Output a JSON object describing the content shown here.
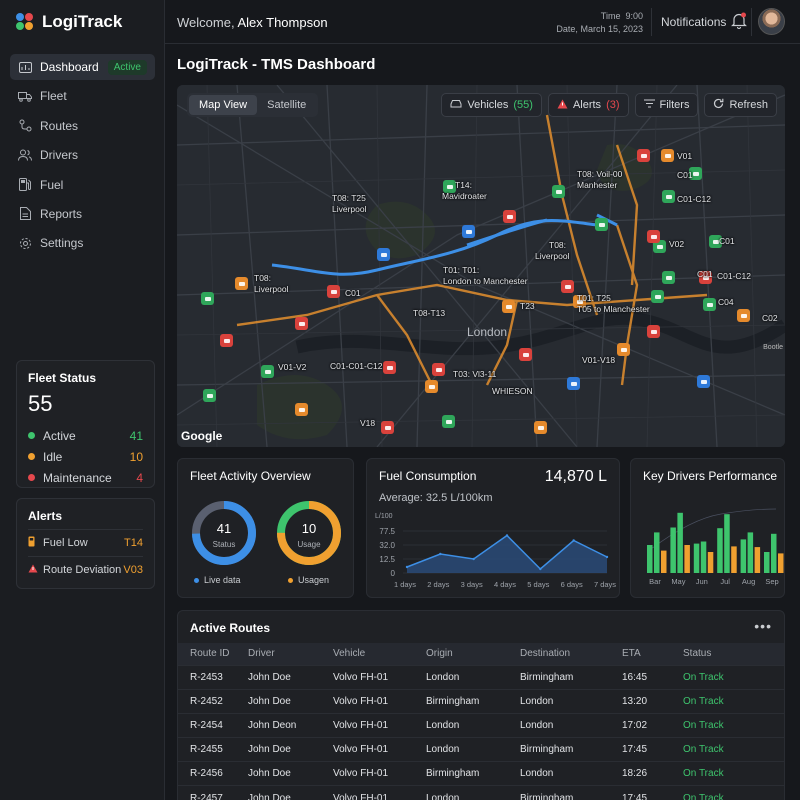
{
  "app": {
    "name": "LogiTrack"
  },
  "sidebar": {
    "items": [
      {
        "label": "Dashboard",
        "icon": "dashboard-icon",
        "badge": "Active"
      },
      {
        "label": "Fleet",
        "icon": "truck-icon"
      },
      {
        "label": "Routes",
        "icon": "routes-icon"
      },
      {
        "label": "Drivers",
        "icon": "users-icon"
      },
      {
        "label": "Fuel",
        "icon": "fuel-icon"
      },
      {
        "label": "Reports",
        "icon": "document-icon"
      },
      {
        "label": "Settings",
        "icon": "gear-icon"
      }
    ],
    "fleet_status": {
      "title": "Fleet Status",
      "total": "55",
      "rows": [
        {
          "label": "Active",
          "value": "41",
          "color": "#3ec46d"
        },
        {
          "label": "Idle",
          "value": "10",
          "color": "#f0a030"
        },
        {
          "label": "Maintenance",
          "value": "4",
          "color": "#e5484d"
        }
      ]
    },
    "alerts": {
      "title": "Alerts",
      "rows": [
        {
          "label": "Fuel Low",
          "code": "T14",
          "icon": "fuel-icon"
        },
        {
          "label": "Route Deviation",
          "code": "V03",
          "icon": "warning-icon"
        }
      ]
    }
  },
  "header": {
    "welcome_prefix": "Welcome,",
    "user_name": "Alex Thompson",
    "time_label": "Time",
    "time_value": "9:00",
    "date_label": "Date,",
    "date_value": "March 15, 2023",
    "notifications_label": "Notifications"
  },
  "page": {
    "title": "LogiTrack - TMS Dashboard"
  },
  "map": {
    "tabs": [
      "Map View",
      "Satellite"
    ],
    "vehicles_label": "Vehicles",
    "vehicles_count": "(55)",
    "alerts_label": "Alerts",
    "alerts_count": "(3)",
    "filters_label": "Filters",
    "refresh_label": "Refresh",
    "city_label": "London",
    "attribution": "Google",
    "corner_text": "Bootle",
    "labels": [
      "T08: T25",
      "Liverpool",
      "T14:",
      "Mavidroater",
      "T08: Voil-00",
      "Manhester",
      "V01",
      "C01",
      "C01-C12",
      "T08:",
      "Liverpool",
      "V02",
      "C01",
      "C01",
      "C01-C12",
      "T08:",
      "Liverpool",
      "C01",
      "T01: T01:",
      "London to Manchester",
      "T23",
      "T01: T25",
      "T05 to Mlanchester",
      "C04",
      "C02",
      "T08-T13",
      "V01-V2",
      "C01-C01-C12",
      "V01-V18",
      "T03: Vl3-11",
      "WHIESON",
      "V18"
    ]
  },
  "activity": {
    "title": "Fleet Activity Overview",
    "donut1": {
      "value": "41",
      "label": "Status",
      "fraction": 0.745,
      "color": "#3d8fe6"
    },
    "donut2": {
      "value": "10",
      "label": "Usage",
      "fraction": 0.75,
      "color": "#f0a030",
      "color2": "#3ec46d"
    },
    "legend1": "Live data",
    "legend2": "Usagen"
  },
  "fuel": {
    "title": "Fuel Consumption",
    "total": "14,870 L",
    "average": "Average: 32.5 L/100km"
  },
  "drivers": {
    "title": "Key Drivers Performance"
  },
  "chart_data": [
    {
      "type": "area",
      "ylabel": "L/100",
      "y_ticks": [
        "77.5",
        "32.0",
        "12.5",
        "0"
      ],
      "categories": [
        "1 days",
        "2 days",
        "3 days",
        "4 days",
        "5 days",
        "6 days",
        "7 days"
      ],
      "values": [
        12,
        38,
        28,
        75,
        8,
        65,
        32
      ],
      "ylim": [
        0,
        100
      ]
    },
    {
      "type": "bar",
      "categories": [
        "Bar",
        "May",
        "Jun",
        "Jul",
        "Aug",
        "Sep"
      ],
      "series": [
        {
          "values": [
            40,
            65,
            42,
            64,
            48,
            30
          ],
          "color": "#3ec46d"
        },
        {
          "values": [
            58,
            86,
            45,
            84,
            58,
            56
          ],
          "color": "#3ec46d"
        },
        {
          "values": [
            32,
            40,
            30,
            38,
            37,
            28
          ],
          "color": "#f0a030"
        }
      ],
      "ylim": [
        0,
        100
      ]
    }
  ],
  "routes": {
    "title": "Active Routes",
    "headers": [
      "Route ID",
      "Driver",
      "Vehicle",
      "Origin",
      "Destination",
      "ETA",
      "Status"
    ],
    "rows": [
      [
        "R-2453",
        "John Doe",
        "Volvo FH-01",
        "London",
        "Birmingham",
        "16:45",
        "On Track"
      ],
      [
        "R-2452",
        "John Doe",
        "Volvo FH-01",
        "Birmingham",
        "London",
        "13:20",
        "On Track"
      ],
      [
        "R-2454",
        "John Deon",
        "Volvo FH-01",
        "London",
        "London",
        "17:02",
        "On Track"
      ],
      [
        "R-2455",
        "John Doe",
        "Volvo FH-01",
        "London",
        "Birmingham",
        "17:45",
        "On Track"
      ],
      [
        "R-2456",
        "John Doe",
        "Volvo FH-01",
        "Birmingham",
        "London",
        "18:26",
        "On Track"
      ],
      [
        "R-2457",
        "John Doe",
        "Volvo FH-01",
        "London",
        "Birmingham",
        "17:45",
        "On Track"
      ]
    ]
  }
}
